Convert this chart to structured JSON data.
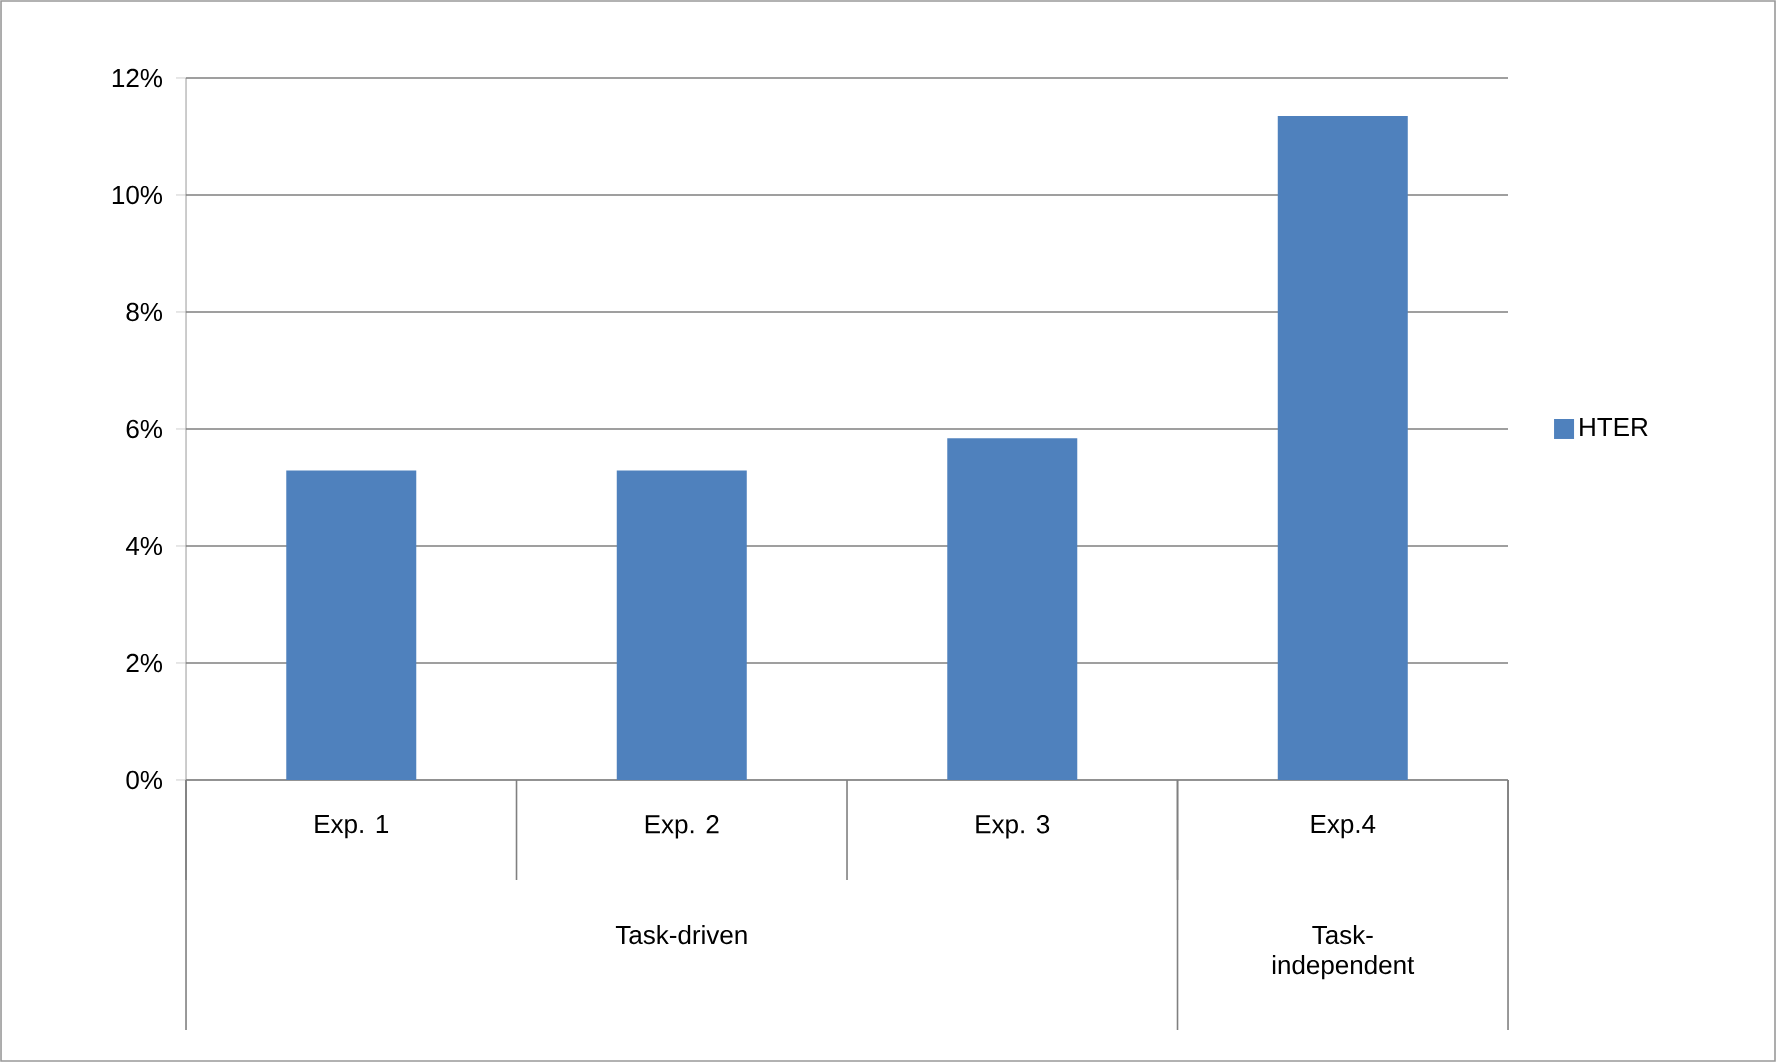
{
  "chart_data": {
    "type": "bar",
    "categories": [
      "Exp. 1",
      "Exp. 2",
      "Exp. 3",
      "Exp.4"
    ],
    "series": [
      {
        "name": "HTER",
        "color": "#4f81bd",
        "values": [
          5.29,
          5.29,
          5.84,
          11.35
        ]
      }
    ],
    "ylim": [
      0,
      12
    ],
    "yticks": [
      {
        "value": 0,
        "label": "0%"
      },
      {
        "value": 2,
        "label": "2%"
      },
      {
        "value": 4,
        "label": "4%"
      },
      {
        "value": 6,
        "label": "6%"
      },
      {
        "value": 8,
        "label": "8%"
      },
      {
        "value": 10,
        "label": "10%"
      },
      {
        "value": 12,
        "label": "12%"
      }
    ],
    "annotations": [
      "Task-driven",
      "Task-independent"
    ],
    "grid": "y",
    "legend": "right"
  }
}
